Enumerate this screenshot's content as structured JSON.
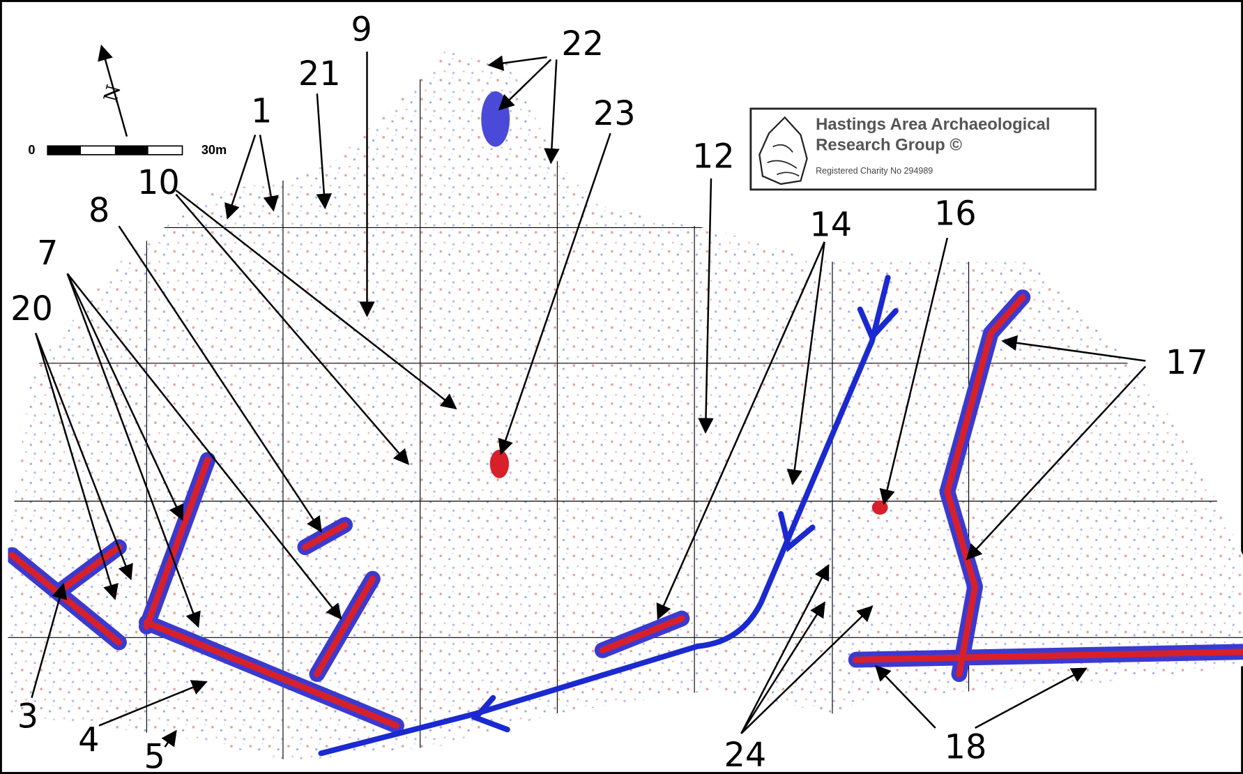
{
  "north_label": "N",
  "scale_bar": {
    "start": "0",
    "end": "30m"
  },
  "logo": {
    "title_line1": "Hastings Area Archaeological",
    "title_line2": "Research Group ©",
    "charity": "Registered Charity No 294989"
  },
  "annotations": [
    "1",
    "3",
    "4",
    "5",
    "7",
    "8",
    "9",
    "10",
    "12",
    "14",
    "16",
    "17",
    "18",
    "20",
    "21",
    "22",
    "23",
    "24"
  ]
}
